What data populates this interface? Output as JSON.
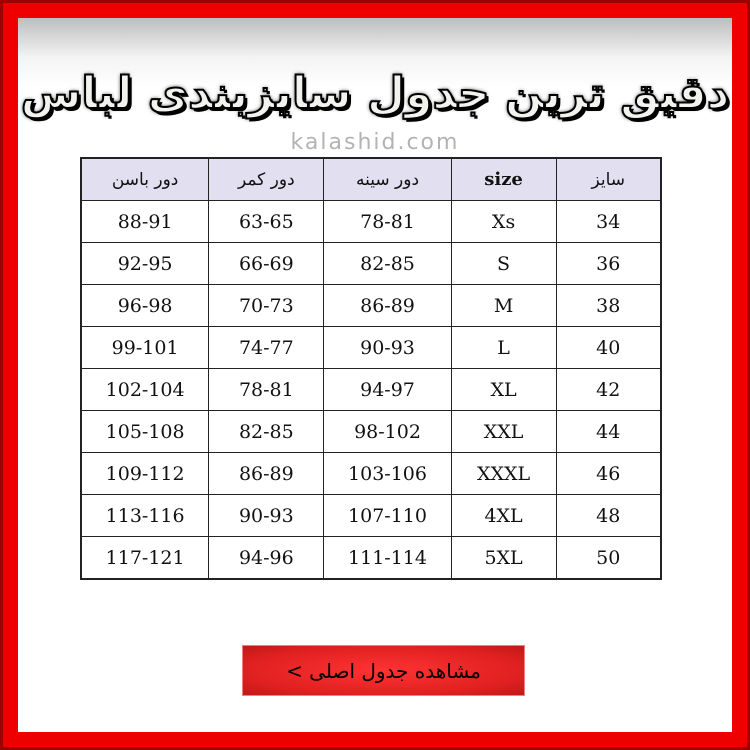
{
  "title": "دقیق ترین جدول سایزبندی لباس",
  "website": "kalashid.com",
  "colors": {
    "frame": "#ee0000",
    "header_bg": "#e2dff0",
    "button": "#e02020"
  },
  "table": {
    "headers": [
      "سایز",
      "size",
      "دور سینه",
      "دور کمر",
      "دور باسن"
    ],
    "rows": [
      [
        "34",
        "Xs",
        "78-81",
        "63-65",
        "88-91"
      ],
      [
        "36",
        "S",
        "82-85",
        "66-69",
        "92-95"
      ],
      [
        "38",
        "M",
        "86-89",
        "70-73",
        "96-98"
      ],
      [
        "40",
        "L",
        "90-93",
        "74-77",
        "99-101"
      ],
      [
        "42",
        "XL",
        "94-97",
        "78-81",
        "102-104"
      ],
      [
        "44",
        "XXL",
        "98-102",
        "82-85",
        "105-108"
      ],
      [
        "46",
        "XXXL",
        "103-106",
        "86-89",
        "109-112"
      ],
      [
        "48",
        "4XL",
        "107-110",
        "90-93",
        "113-116"
      ],
      [
        "50",
        "5XL",
        "111-114",
        "94-96",
        "117-121"
      ]
    ]
  },
  "button": {
    "label": "مشاهده جدول اصلی >"
  }
}
